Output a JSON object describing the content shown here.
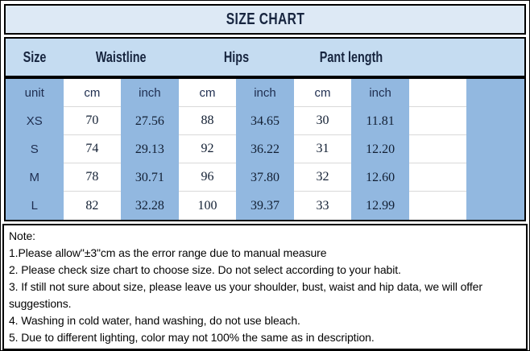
{
  "title": "SIZE CHART",
  "colors": {
    "title_bg": "#dde9f5",
    "header_bg": "#c5dcf1",
    "column_blue": "#92b8e0",
    "border_black": "#000000",
    "text_navy": "#1b2a44",
    "row_line": "#d9d9d9"
  },
  "table": {
    "header_groups": [
      {
        "label": "Size"
      },
      {
        "label": "Waistline"
      },
      {
        "label": "Hips"
      },
      {
        "label": "Pant length"
      },
      {
        "label": ""
      }
    ],
    "unit_row": [
      "unit",
      "cm",
      "inch",
      "cm",
      "inch",
      "cm",
      "inch",
      "",
      ""
    ],
    "rows": [
      [
        "XS",
        "70",
        "27.56",
        "88",
        "34.65",
        "30",
        "11.81",
        "",
        ""
      ],
      [
        "S",
        "74",
        "29.13",
        "92",
        "36.22",
        "31",
        "12.20",
        "",
        ""
      ],
      [
        "M",
        "78",
        "30.71",
        "96",
        "37.80",
        "32",
        "12.60",
        "",
        ""
      ],
      [
        "L",
        "82",
        "32.28",
        "100",
        "39.37",
        "33",
        "12.99",
        "",
        ""
      ]
    ]
  },
  "notes": {
    "heading": "Note:",
    "items": [
      "1.Please allow\"±3\"cm as the error range due to manual measure",
      "2. Please check size chart to choose size. Do not select according to your habit.",
      "3. If still not sure about size, please leave us your shoulder, bust, waist and hip data, we will offer suggestions.",
      "4. Washing in cold water, hand washing, do not use bleach.",
      "5. Due to different lighting, color may not 100% the same as in description."
    ]
  }
}
